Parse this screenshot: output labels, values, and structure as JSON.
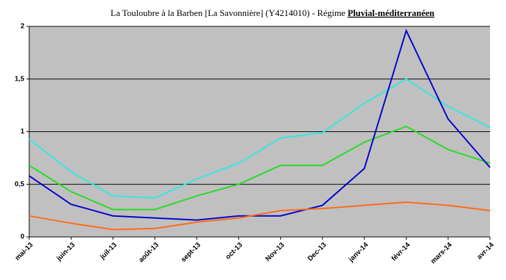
{
  "chart_data": {
    "type": "line",
    "title": "La Touloubre à la Barben [La Savonnière] (Y4214010) - Régime ",
    "title_emphasis": "Pluvial-méditerranéen",
    "categories": [
      "mai-13",
      "juin-13",
      "juil-13",
      "août-13",
      "sept-13",
      "oct-13",
      "Nov-13",
      "Dec-13",
      "janv-14",
      "févr-14",
      "mars-14",
      "avr-14"
    ],
    "series": [
      {
        "color": "#33e6e6",
        "values": [
          0.93,
          0.62,
          0.39,
          0.37,
          0.55,
          0.7,
          0.94,
          0.99,
          1.27,
          1.5,
          1.24,
          1.04
        ]
      },
      {
        "color": "#22dd22",
        "values": [
          0.68,
          0.43,
          0.26,
          0.26,
          0.39,
          0.5,
          0.68,
          0.68,
          0.9,
          1.05,
          0.83,
          0.7
        ]
      },
      {
        "color": "#0000cc",
        "values": [
          0.58,
          0.31,
          0.2,
          0.18,
          0.16,
          0.2,
          0.2,
          0.3,
          0.65,
          1.96,
          1.12,
          0.66
        ]
      },
      {
        "color": "#ff6a13",
        "values": [
          0.2,
          0.13,
          0.07,
          0.08,
          0.14,
          0.18,
          0.25,
          0.27,
          0.3,
          0.33,
          0.3,
          0.25
        ]
      }
    ],
    "ylim": [
      0,
      2
    ],
    "yticks": [
      0,
      {
        "value": 0.5,
        "label": "0,5"
      },
      1,
      {
        "value": 1.5,
        "label": "1,5"
      },
      2
    ],
    "grid": true,
    "background": "#c0c0c0"
  }
}
